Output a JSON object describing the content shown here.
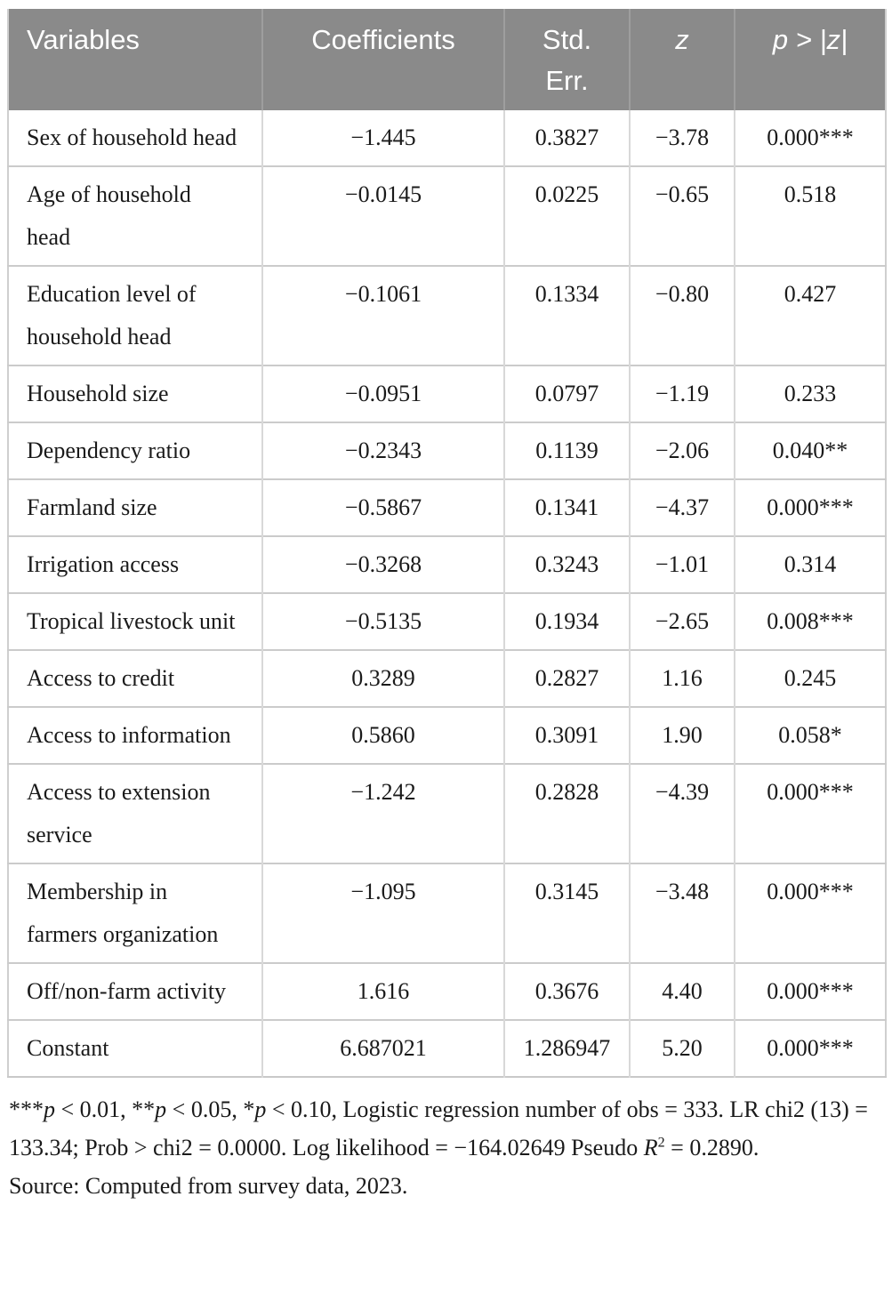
{
  "table": {
    "columns": [
      {
        "label": "Variables",
        "italic": false
      },
      {
        "label": "Coefficients",
        "italic": false
      },
      {
        "label": "Std. Err.",
        "italic": false
      },
      {
        "label": "z",
        "italic": true
      },
      {
        "label": "p > |z|",
        "italic": true
      }
    ],
    "rows": [
      {
        "variable": "Sex of household head",
        "coefficient": "−1.445",
        "std_err": "0.3827",
        "z": "−3.78",
        "p": "0.000***"
      },
      {
        "variable": "Age of household head",
        "coefficient": "−0.0145",
        "std_err": "0.0225",
        "z": "−0.65",
        "p": "0.518"
      },
      {
        "variable": "Education level of household head",
        "coefficient": "−0.1061",
        "std_err": "0.1334",
        "z": "−0.80",
        "p": "0.427"
      },
      {
        "variable": "Household size",
        "coefficient": "−0.0951",
        "std_err": "0.0797",
        "z": "−1.19",
        "p": "0.233"
      },
      {
        "variable": "Dependency ratio",
        "coefficient": "−0.2343",
        "std_err": "0.1139",
        "z": "−2.06",
        "p": "0.040**"
      },
      {
        "variable": "Farmland size",
        "coefficient": "−0.5867",
        "std_err": "0.1341",
        "z": "−4.37",
        "p": "0.000***"
      },
      {
        "variable": "Irrigation access",
        "coefficient": "−0.3268",
        "std_err": "0.3243",
        "z": "−1.01",
        "p": "0.314"
      },
      {
        "variable": "Tropical livestock unit",
        "coefficient": "−0.5135",
        "std_err": "0.1934",
        "z": "−2.65",
        "p": "0.008***"
      },
      {
        "variable": "Access to credit",
        "coefficient": "0.3289",
        "std_err": "0.2827",
        "z": "1.16",
        "p": "0.245"
      },
      {
        "variable": "Access to information",
        "coefficient": "0.5860",
        "std_err": "0.3091",
        "z": "1.90",
        "p": "0.058*"
      },
      {
        "variable": "Access to extension service",
        "coefficient": "−1.242",
        "std_err": "0.2828",
        "z": "−4.39",
        "p": "0.000***"
      },
      {
        "variable": "Membership in farmers organization",
        "coefficient": "−1.095",
        "std_err": "0.3145",
        "z": "−3.48",
        "p": "0.000***"
      },
      {
        "variable": "Off/non-farm activity",
        "coefficient": "1.616",
        "std_err": "0.3676",
        "z": "4.40",
        "p": "0.000***"
      },
      {
        "variable": "Constant",
        "coefficient": "6.687021",
        "std_err": "1.286947",
        "z": "5.20",
        "p": "0.000***"
      }
    ]
  },
  "footnote": {
    "segments": [
      {
        "text": "***"
      },
      {
        "text": "p",
        "italic": true
      },
      {
        "text": " < 0.01, **"
      },
      {
        "text": "p",
        "italic": true
      },
      {
        "text": " < 0.05, *"
      },
      {
        "text": "p",
        "italic": true
      },
      {
        "text": " < 0.10, Logistic regression number of obs = 333. LR chi2 (13) = 133.34; Prob > chi2 = 0.0000. Log likelihood = −164.02649 Pseudo "
      },
      {
        "text": "R",
        "italic": true
      },
      {
        "text": "2",
        "sup": true
      },
      {
        "text": " = 0.2890."
      }
    ],
    "source": "Source: Computed from survey data, 2023."
  }
}
